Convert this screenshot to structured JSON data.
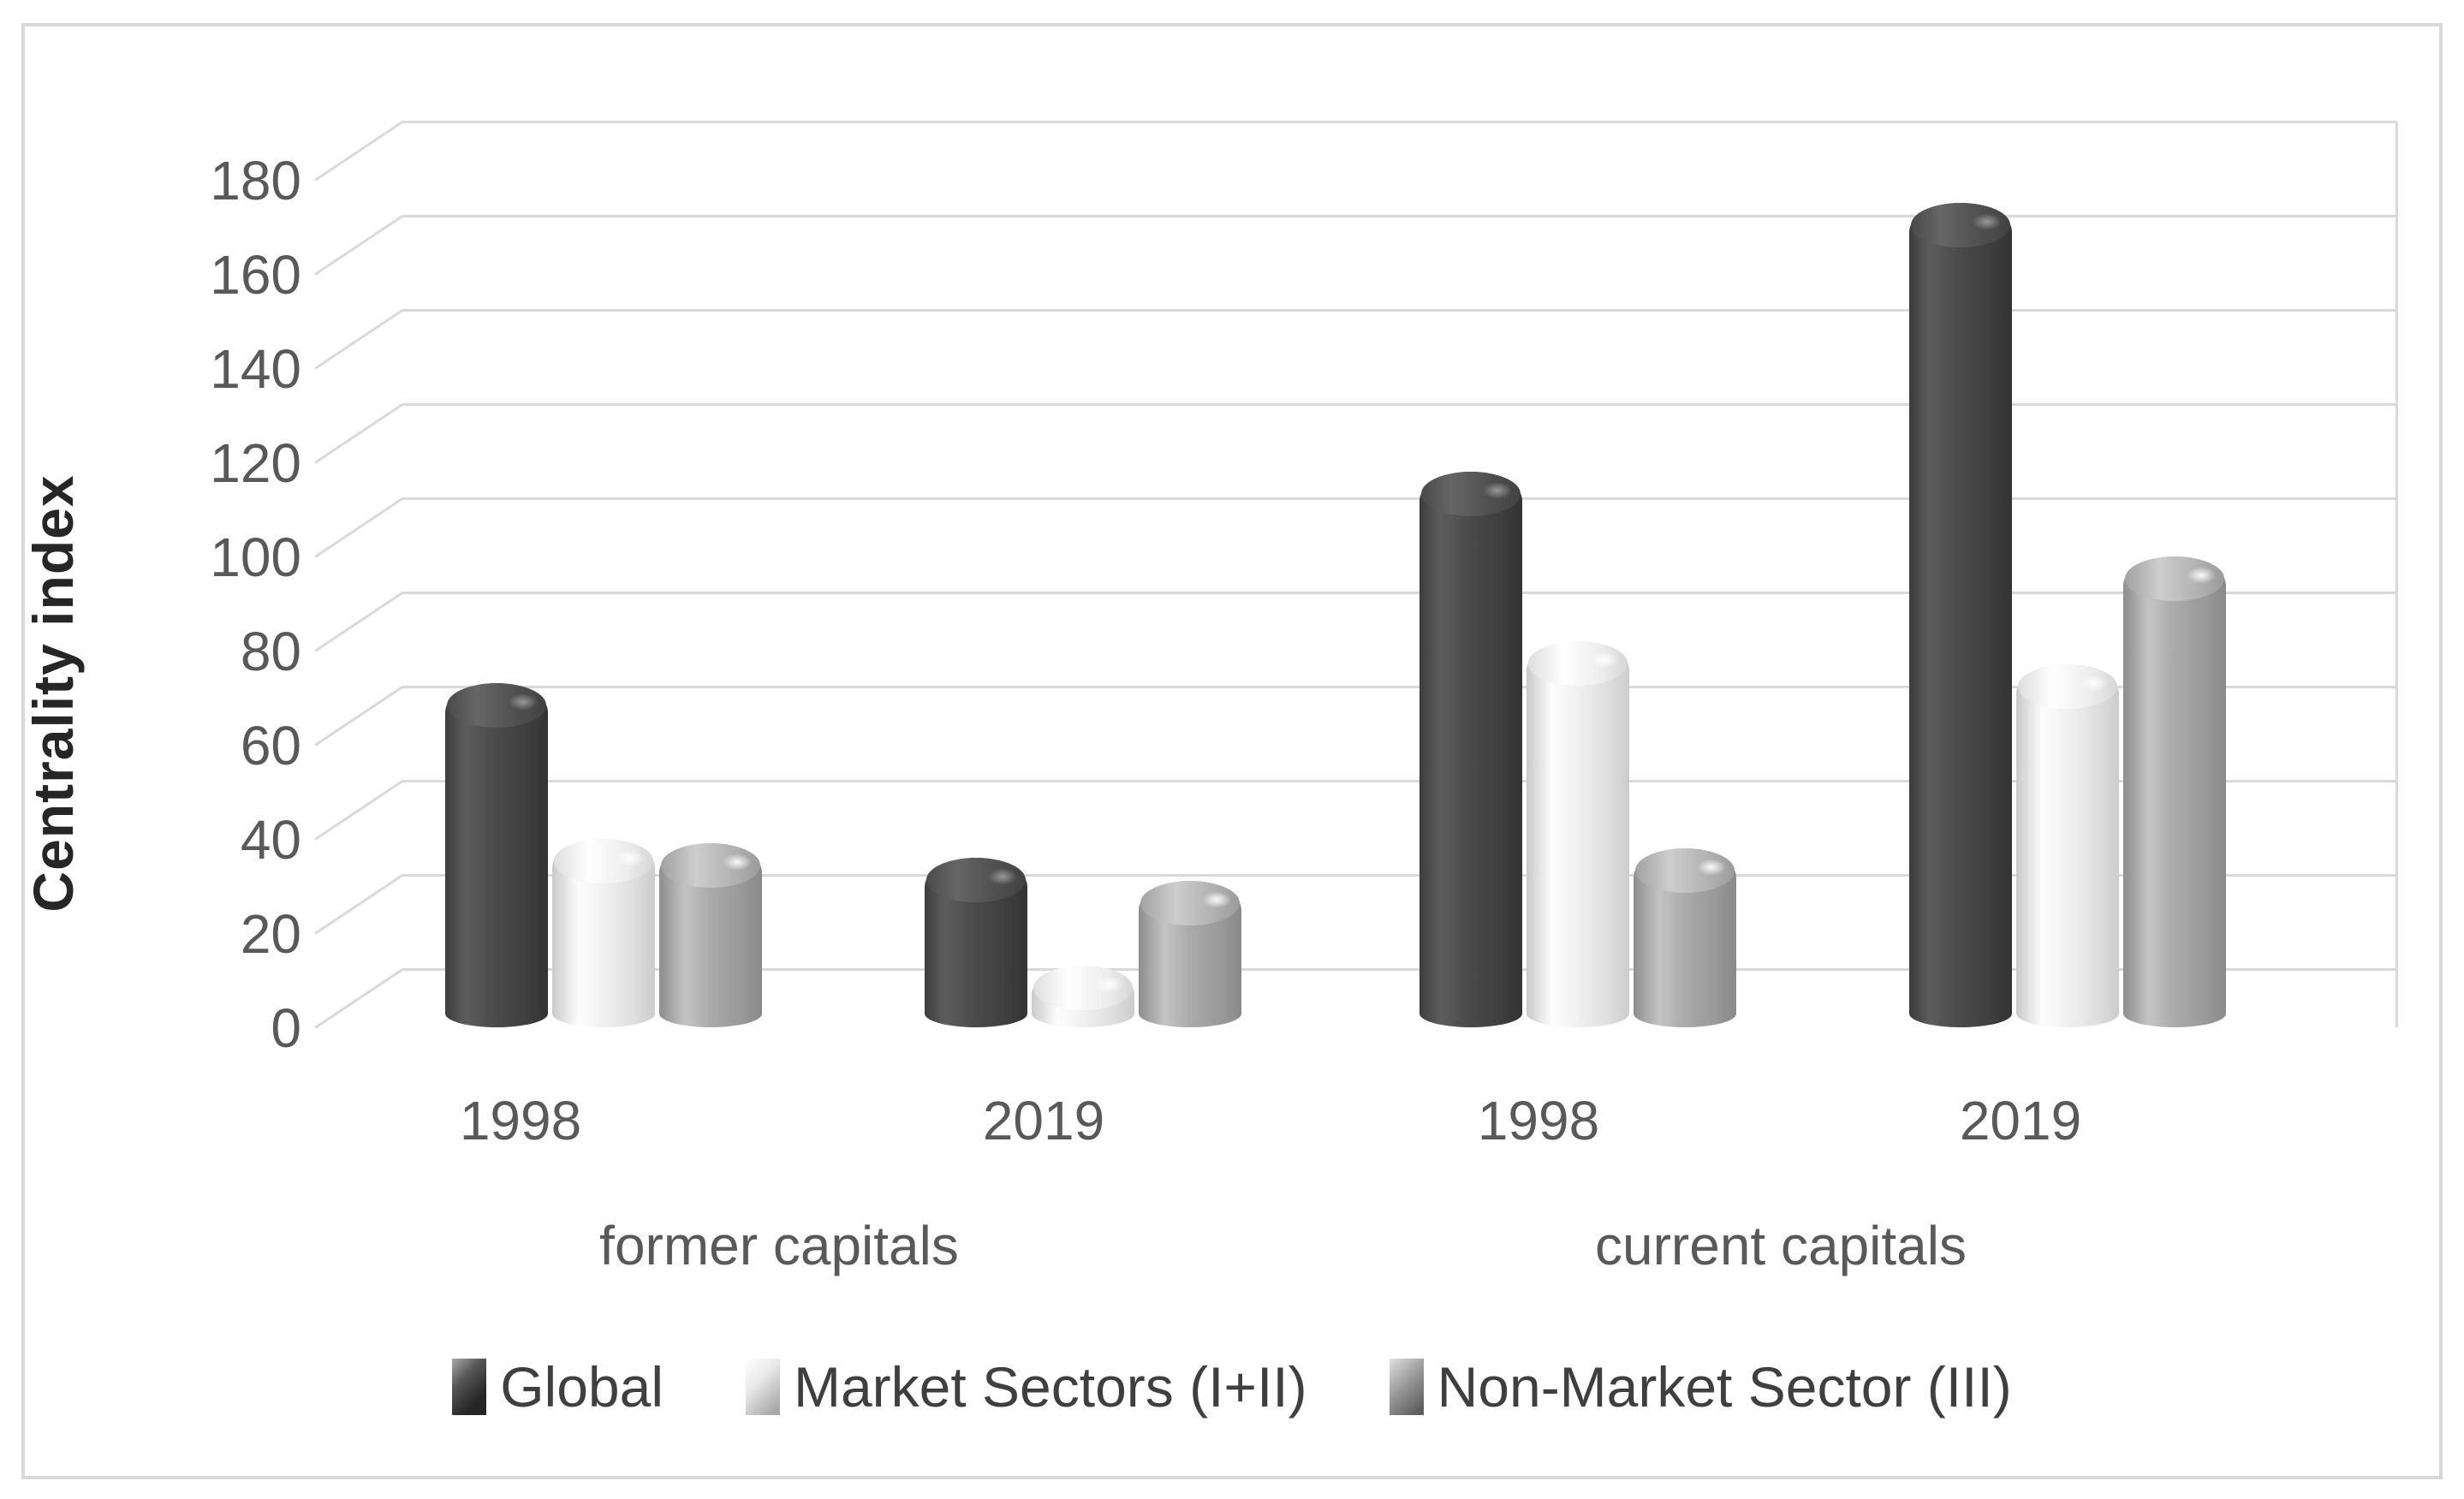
{
  "chart_data": {
    "type": "bar",
    "style": "3d-cylinder",
    "title": "",
    "xlabel": "",
    "ylabel": "Centrality index",
    "ylim": [
      0,
      180
    ],
    "yticks": [
      0,
      20,
      40,
      60,
      80,
      100,
      120,
      140,
      160,
      180
    ],
    "grid": "on",
    "legend_position": "bottom",
    "group_labels": [
      "1998",
      "2019",
      "1998",
      "2019"
    ],
    "supergroups": [
      {
        "label": "former capitals",
        "groups": [
          0,
          1
        ]
      },
      {
        "label": "current capitals",
        "groups": [
          2,
          3
        ]
      }
    ],
    "series": [
      {
        "name": "Global",
        "color": "#474747",
        "values": [
          68,
          31,
          113,
          170
        ]
      },
      {
        "name": "Market Sectors (I+II)",
        "color": "#efefef",
        "values": [
          35,
          8,
          77,
          72
        ]
      },
      {
        "name": "Non-Market Sector (III)",
        "color": "#a6a6a6",
        "values": [
          34,
          26,
          33,
          95
        ]
      }
    ],
    "colors": {
      "gridline": "#d9d9d9",
      "frame_border": "#d9d9d9",
      "tick_text": "#595959",
      "category_text": "#595959",
      "legend_text": "#3f3f3f",
      "axis_title_text": "#262626",
      "background": "#ffffff"
    }
  }
}
